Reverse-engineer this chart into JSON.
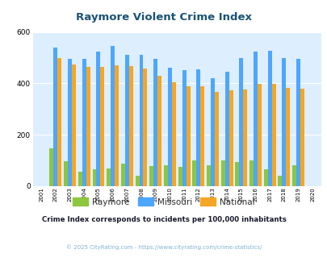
{
  "title": "Raymore Violent Crime Index",
  "title_color": "#1a5276",
  "years": [
    2001,
    2002,
    2003,
    2004,
    2005,
    2006,
    2007,
    2008,
    2009,
    2010,
    2011,
    2012,
    2013,
    2014,
    2015,
    2016,
    2017,
    2018,
    2019,
    2020
  ],
  "raymore": [
    0,
    148,
    98,
    55,
    65,
    68,
    88,
    42,
    78,
    82,
    75,
    100,
    80,
    100,
    93,
    100,
    65,
    42,
    80,
    0
  ],
  "missouri": [
    0,
    540,
    495,
    495,
    525,
    545,
    510,
    510,
    495,
    460,
    450,
    455,
    420,
    445,
    498,
    525,
    528,
    500,
    495,
    0
  ],
  "national": [
    0,
    498,
    472,
    463,
    463,
    470,
    467,
    458,
    428,
    404,
    390,
    390,
    367,
    372,
    375,
    398,
    398,
    381,
    378,
    0
  ],
  "raymore_color": "#8dc63f",
  "missouri_color": "#4da6ff",
  "national_color": "#f5a623",
  "bg_color": "#ddeeff",
  "ylim": [
    0,
    600
  ],
  "yticks": [
    0,
    200,
    400,
    600
  ],
  "subtitle": "Crime Index corresponds to incidents per 100,000 inhabitants",
  "subtitle_color": "#1a1a2e",
  "footer": "© 2025 CityRating.com - https://www.cityrating.com/crime-statistics/",
  "footer_color": "#7fb3d3",
  "legend_labels": [
    "Raymore",
    "Missouri",
    "National"
  ],
  "bar_width": 0.28
}
